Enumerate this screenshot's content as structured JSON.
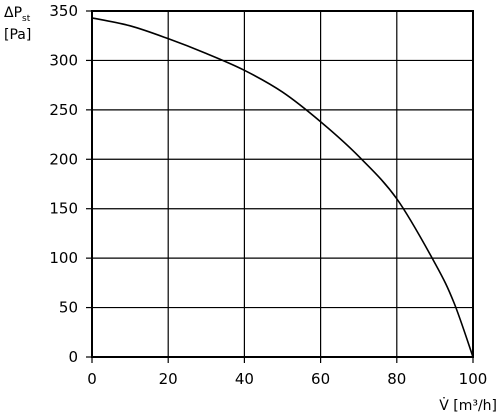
{
  "chart_data": {
    "type": "line",
    "title": "",
    "ylabel": {
      "prefix": "ΔP",
      "subscript": "st",
      "unit": "[Pa]"
    },
    "xlabel": {
      "symbol": "V̇",
      "unit": "[m³/h]"
    },
    "xlim": [
      0,
      100
    ],
    "ylim": [
      0,
      350
    ],
    "xticks": [
      "0",
      "20",
      "40",
      "60",
      "80",
      "100"
    ],
    "yticks": [
      "0",
      "50",
      "100",
      "150",
      "200",
      "250",
      "300",
      "350"
    ],
    "grid": true,
    "series": [
      {
        "x": [
          0,
          10,
          20,
          30,
          40,
          50,
          60,
          70,
          80,
          90,
          95,
          100
        ],
        "y": [
          343,
          335,
          322,
          307,
          290,
          268,
          238,
          203,
          160,
          95,
          55,
          0
        ]
      }
    ],
    "colors": {
      "line": "#000000",
      "grid": "#000000",
      "background": "#ffffff"
    }
  }
}
